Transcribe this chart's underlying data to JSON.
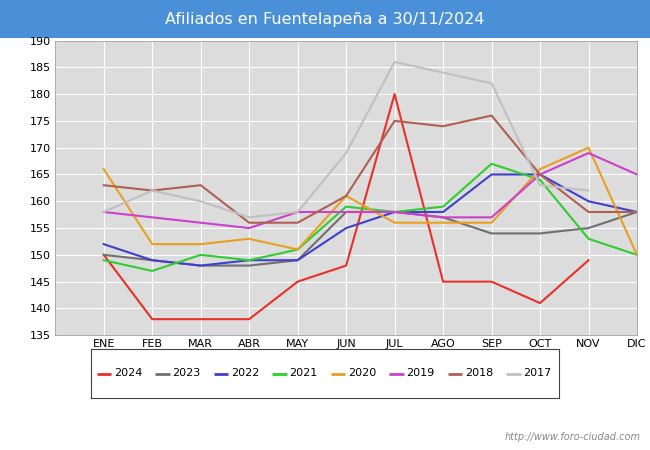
{
  "title": "Afiliados en Fuentelapeña a 30/11/2024",
  "title_bg": "#4a90d9",
  "x_labels": [
    "",
    "ENE",
    "FEB",
    "MAR",
    "ABR",
    "MAY",
    "JUN",
    "JUL",
    "AGO",
    "SEP",
    "OCT",
    "NOV",
    "DIC"
  ],
  "ylim": [
    135,
    190
  ],
  "yticks": [
    135,
    140,
    145,
    150,
    155,
    160,
    165,
    170,
    175,
    180,
    185,
    190
  ],
  "series": {
    "2024": {
      "color": "#e8302a",
      "data": [
        null,
        150,
        138,
        138,
        138,
        145,
        148,
        180,
        145,
        145,
        141,
        149,
        null
      ]
    },
    "2023": {
      "color": "#707070",
      "data": [
        null,
        150,
        149,
        148,
        148,
        149,
        158,
        158,
        157,
        154,
        154,
        155,
        158
      ]
    },
    "2022": {
      "color": "#4040cc",
      "data": [
        null,
        152,
        149,
        148,
        149,
        149,
        155,
        158,
        158,
        165,
        165,
        160,
        158
      ]
    },
    "2021": {
      "color": "#30cc30",
      "data": [
        null,
        149,
        147,
        150,
        149,
        151,
        159,
        158,
        159,
        167,
        164,
        153,
        150
      ]
    },
    "2020": {
      "color": "#e8a020",
      "data": [
        null,
        166,
        152,
        152,
        153,
        151,
        161,
        156,
        156,
        156,
        166,
        170,
        150
      ]
    },
    "2019": {
      "color": "#cc40cc",
      "data": [
        null,
        158,
        157,
        156,
        155,
        158,
        158,
        158,
        157,
        157,
        165,
        169,
        165
      ]
    },
    "2018": {
      "color": "#b06050",
      "data": [
        null,
        163,
        162,
        163,
        156,
        156,
        161,
        175,
        174,
        176,
        165,
        158,
        158
      ]
    },
    "2017": {
      "color": "#c0c0c0",
      "data": [
        null,
        158,
        162,
        160,
        157,
        158,
        169,
        186,
        184,
        182,
        163,
        162,
        null
      ]
    }
  },
  "legend_order": [
    "2024",
    "2023",
    "2022",
    "2021",
    "2020",
    "2019",
    "2018",
    "2017"
  ],
  "watermark": "http://www.foro-ciudad.com",
  "bg_plot": "#dcdcdc",
  "grid_color": "#ffffff",
  "line_width": 1.5
}
